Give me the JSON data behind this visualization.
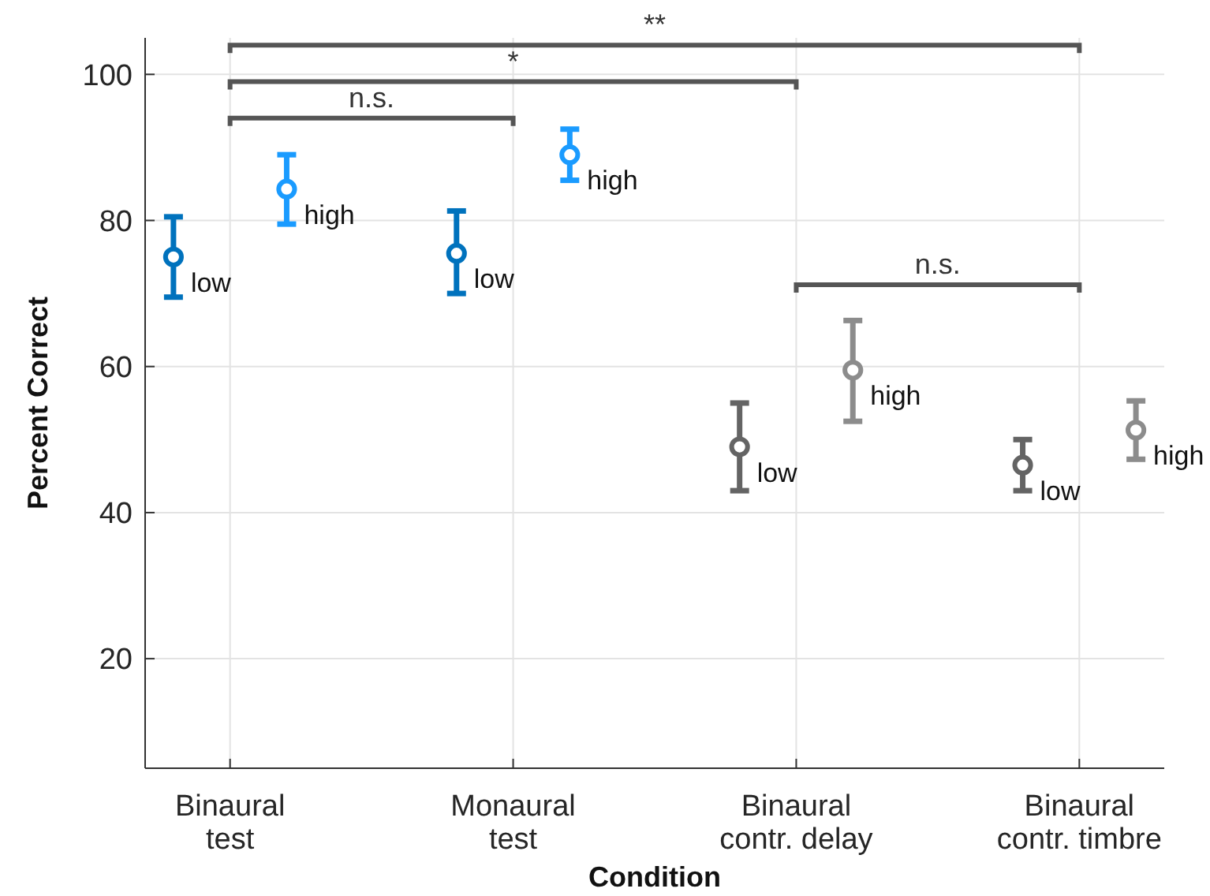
{
  "chart_data": {
    "type": "scatter",
    "xlabel": "Condition",
    "ylabel": "Percent Correct",
    "categories": [
      "Binaural\ntest",
      "Monaural\ntest",
      "Binaural\ncontr. delay",
      "Binaural\ncontr. timbre"
    ],
    "ylim": [
      5,
      105
    ],
    "yticks": [
      20,
      40,
      60,
      80,
      100
    ],
    "grid": true,
    "marker": "circle",
    "series": [
      {
        "values": [
          75,
          75.5,
          49,
          46.5
        ],
        "errors": [
          [
            69.5,
            80.5
          ],
          [
            70,
            81.3
          ],
          [
            43,
            55
          ],
          [
            43,
            50
          ]
        ],
        "colors": [
          "#0072bd",
          "#0072bd",
          "#646464",
          "#646464"
        ],
        "value_labels": [
          "low",
          "low",
          "low",
          "low"
        ]
      },
      {
        "values": [
          84.3,
          89,
          59.5,
          51.3
        ],
        "errors": [
          [
            79.5,
            89
          ],
          [
            85.5,
            92.5
          ],
          [
            52.5,
            66.3
          ],
          [
            47.3,
            55.3
          ]
        ],
        "colors": [
          "#1a9bff",
          "#1a9bff",
          "#8c8c8c",
          "#8c8c8c"
        ],
        "value_labels": [
          "high",
          "high",
          "high",
          "high"
        ]
      }
    ],
    "annotations": [
      "n.s.",
      "*",
      "**",
      "n.s."
    ]
  }
}
